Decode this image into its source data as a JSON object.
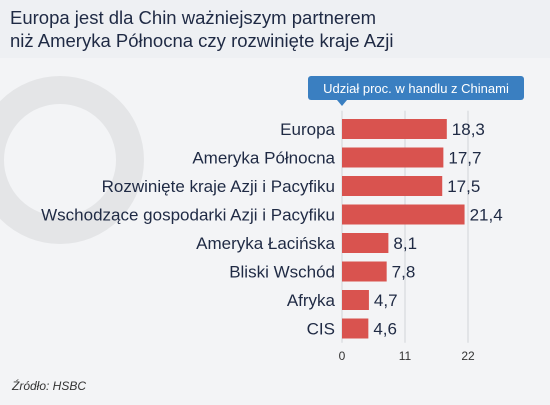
{
  "title": "Europa jest dla Chin ważniejszym partnerem\nniż Ameryka Północna czy rozwinięte kraje Azji",
  "source": "Źródło: HSBC",
  "colors": {
    "bar": "#d9534f",
    "legend_bg": "#3a7fc1",
    "legend_text": "#ffffff",
    "title": "#1f2a44",
    "grid": "#d0d3d8"
  },
  "chart_data": {
    "type": "bar",
    "orientation": "horizontal",
    "legend": "Udział proc. w handlu z Chinami",
    "legend_placement": "top-right",
    "categories": [
      "Europa",
      "Ameryka Północna",
      "Rozwinięte kraje Azji i Pacyfiku",
      "Wschodzące gospodarki Azji i Pacyfiku",
      "Ameryka Łacińska",
      "Bliski Wschód",
      "Afryka",
      "CIS"
    ],
    "values": [
      18.3,
      17.7,
      17.5,
      21.4,
      8.1,
      7.8,
      4.7,
      4.6
    ],
    "value_labels": [
      "18,3",
      "17,7",
      "17,5",
      "21,4",
      "8,1",
      "7,8",
      "4,7",
      "4,6"
    ],
    "xlim": [
      0,
      22
    ],
    "xticks": [
      0,
      11,
      22
    ],
    "xtick_labels": [
      "0",
      "11",
      "22"
    ],
    "grid": true
  }
}
